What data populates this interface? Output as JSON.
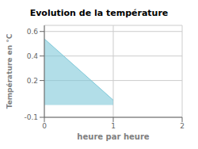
{
  "chart_data": {
    "type": "area",
    "title": "Evolution de la température",
    "xlabel": "heure par heure",
    "ylabel": "Température en °C",
    "x": [
      0,
      1
    ],
    "values": [
      0.54,
      0.04
    ],
    "color": "#7ec8d8",
    "xlim": [
      0,
      2
    ],
    "ylim": [
      -0.1,
      0.65
    ],
    "xticks": [
      0,
      1,
      2
    ],
    "yticks": [
      -0.1,
      0.2,
      0.4,
      0.6
    ],
    "grid": true
  }
}
